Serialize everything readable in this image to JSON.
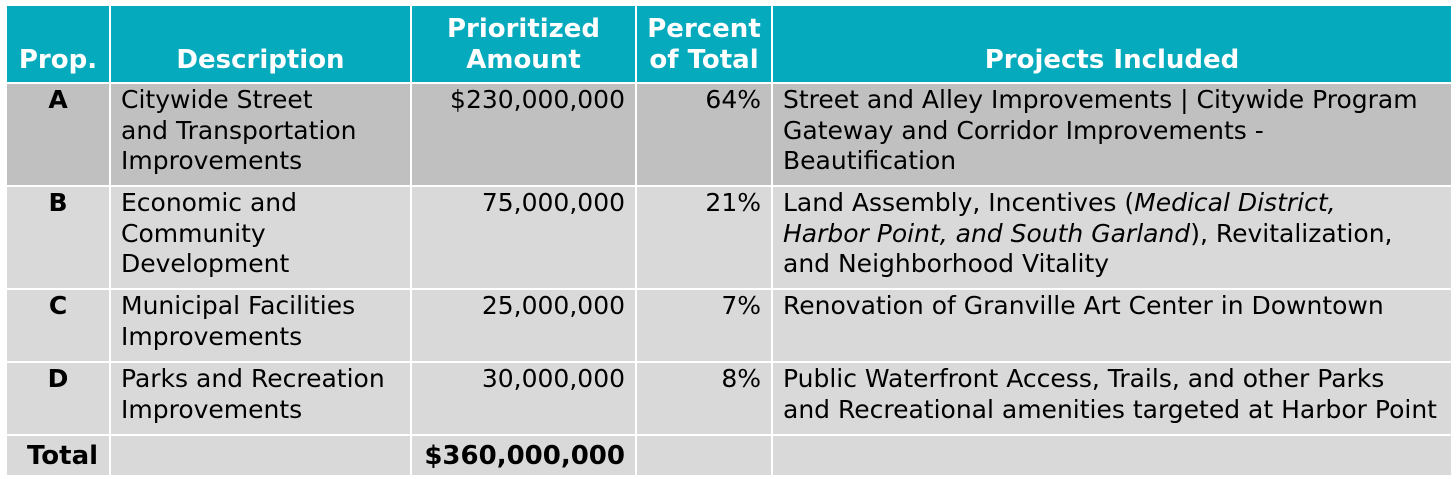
{
  "table": {
    "headers": {
      "prop": "Prop.",
      "description": "Description",
      "amount_line1": "Prioritized",
      "amount_line2": "Amount",
      "percent_line1": "Percent",
      "percent_line2": "of Total",
      "projects": "Projects Included"
    },
    "rows": [
      {
        "prop": "A",
        "description_lines": [
          "Citywide Street",
          "and Transportation",
          "Improvements"
        ],
        "amount": "$230,000,000",
        "percent": "64%",
        "projects_line1": "Street and Alley Improvements | Citywide Program",
        "projects_line2": "Gateway and Corridor Improvements - Beautification"
      },
      {
        "prop": "B",
        "description_lines": [
          "Economic and",
          "Community",
          "Development"
        ],
        "amount": "75,000,000",
        "percent": "21%",
        "projects_p1": "Land Assembly, Incentives (",
        "projects_italic1": "Medical District,",
        "projects_italic2": "Harbor Point, and South Garland",
        "projects_p2": "), Revitalization,",
        "projects_p3": "and Neighborhood Vitality"
      },
      {
        "prop": "C",
        "description_lines": [
          "Municipal Facilities",
          "Improvements"
        ],
        "amount": "25,000,000",
        "percent": "7%",
        "projects_line1": "Renovation of Granville Art Center in Downtown"
      },
      {
        "prop": "D",
        "description_lines": [
          "Parks and Recreation",
          "Improvements"
        ],
        "amount": "30,000,000",
        "percent": "8%",
        "projects_line1": "Public Waterfront Access, Trails, and other Parks",
        "projects_line2": "and Recreational amenities targeted at Harbor Point"
      }
    ],
    "total": {
      "label": "Total",
      "amount": "$360,000,000"
    }
  },
  "colors": {
    "header_bg": "#06aabd",
    "header_text": "#ffffff",
    "row_a_bg": "#c0c0c0",
    "row_bg": "#d9d9d9"
  }
}
